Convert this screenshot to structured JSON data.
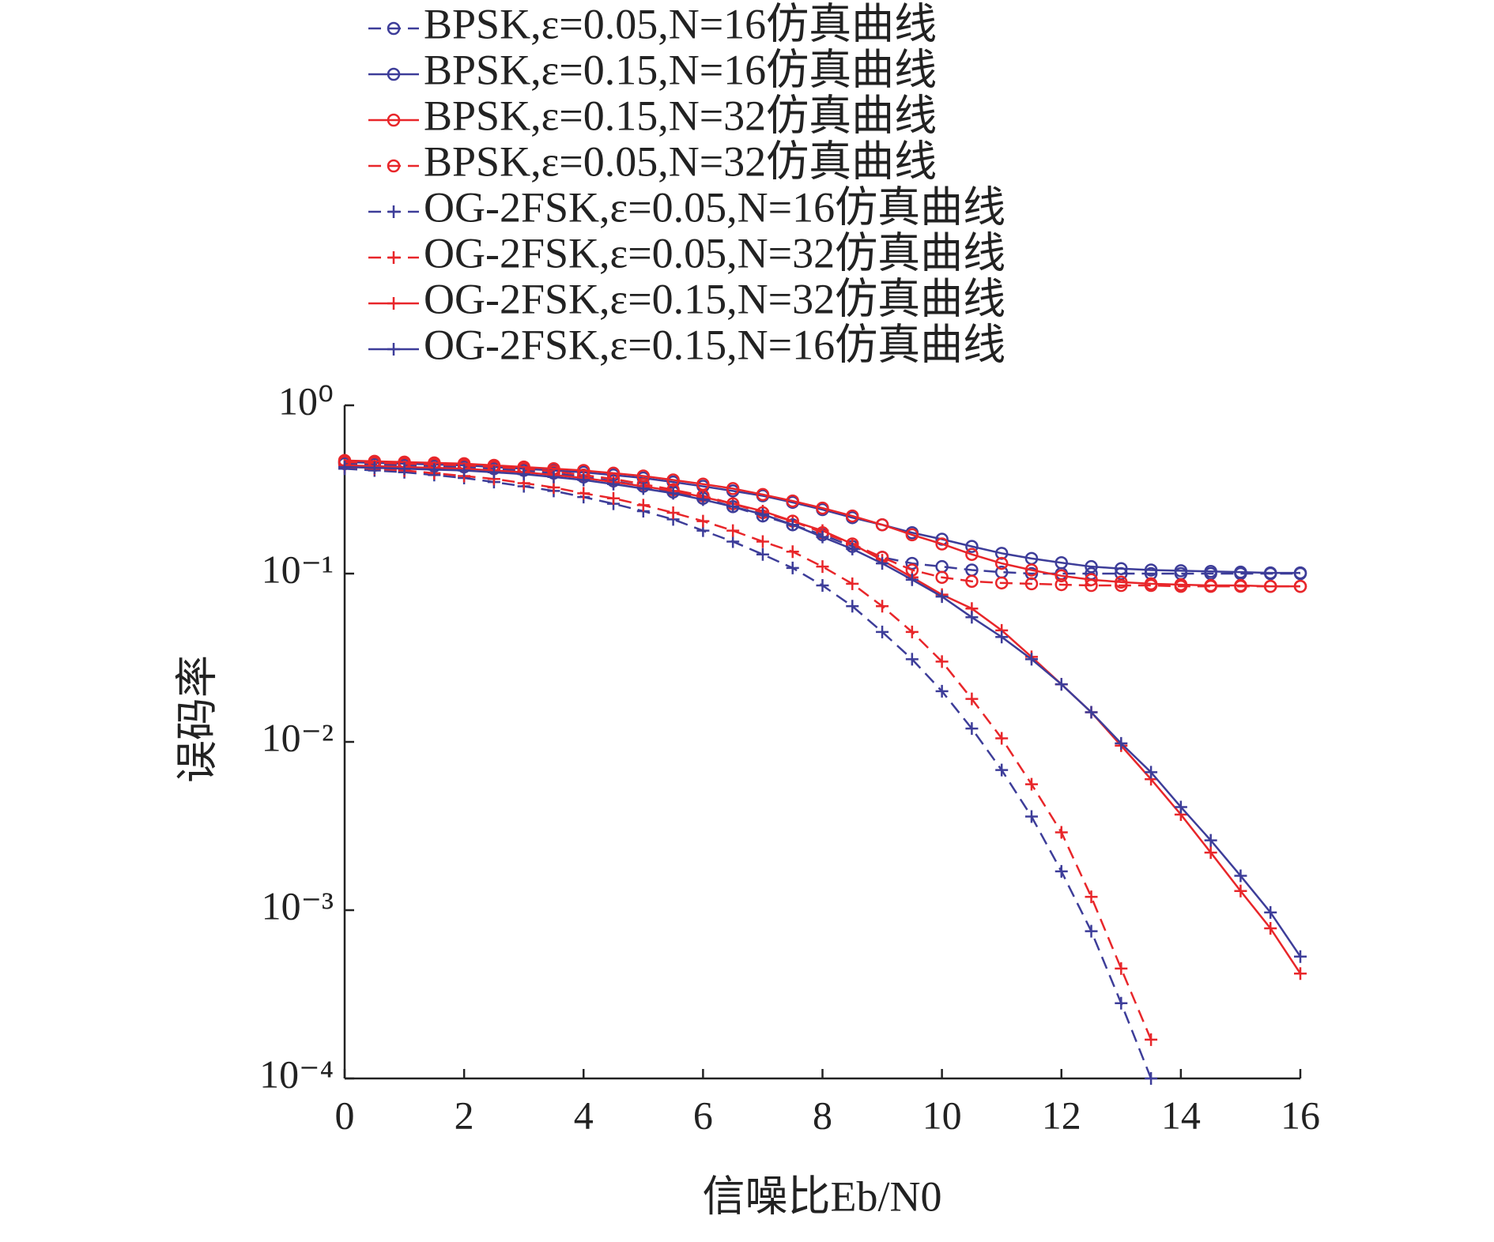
{
  "chart_data": {
    "type": "line",
    "xlabel": "信噪比Eb/N0",
    "ylabel": "误码率",
    "x": [
      0,
      0.5,
      1,
      1.5,
      2,
      2.5,
      3,
      3.5,
      4,
      4.5,
      5,
      5.5,
      6,
      6.5,
      7,
      7.5,
      8,
      8.5,
      9,
      9.5,
      10,
      10.5,
      11,
      11.5,
      12,
      12.5,
      13,
      13.5,
      14,
      14.5,
      15,
      15.5,
      16
    ],
    "xlim": [
      0,
      16
    ],
    "xticks": [
      0,
      2,
      4,
      6,
      8,
      10,
      12,
      14,
      16
    ],
    "ylim": [
      0.0001,
      1
    ],
    "log_y": true,
    "yticks": [
      {
        "value": 1,
        "label": "10⁰"
      },
      {
        "value": 0.1,
        "label": "10⁻¹"
      },
      {
        "value": 0.01,
        "label": "10⁻²"
      },
      {
        "value": 0.001,
        "label": "10⁻³"
      },
      {
        "value": 0.0001,
        "label": "10⁻⁴"
      }
    ],
    "series": [
      {
        "name": "BPSK,ε=0.05,N=16仿真曲线",
        "color": "#3d3d99",
        "dashed": true,
        "marker": "circle",
        "values": [
          0.45,
          0.445,
          0.44,
          0.435,
          0.43,
          0.42,
          0.41,
          0.395,
          0.375,
          0.355,
          0.33,
          0.305,
          0.28,
          0.25,
          0.22,
          0.195,
          0.17,
          0.145,
          0.125,
          0.115,
          0.11,
          0.105,
          0.102,
          0.1,
          0.1,
          0.1,
          0.1,
          0.1,
          0.1,
          0.1,
          0.1,
          0.1,
          0.1
        ]
      },
      {
        "name": "BPSK,ε=0.15,N=16仿真曲线",
        "color": "#3d3d99",
        "dashed": false,
        "marker": "circle",
        "values": [
          0.46,
          0.455,
          0.45,
          0.445,
          0.44,
          0.43,
          0.42,
          0.41,
          0.4,
          0.385,
          0.37,
          0.35,
          0.33,
          0.31,
          0.29,
          0.265,
          0.24,
          0.215,
          0.195,
          0.175,
          0.16,
          0.145,
          0.132,
          0.123,
          0.116,
          0.11,
          0.107,
          0.105,
          0.104,
          0.103,
          0.102,
          0.101,
          0.101
        ]
      },
      {
        "name": "BPSK,ε=0.15,N=32仿真曲线",
        "color": "#e8262a",
        "dashed": false,
        "marker": "circle",
        "values": [
          0.47,
          0.465,
          0.46,
          0.455,
          0.45,
          0.44,
          0.43,
          0.42,
          0.41,
          0.395,
          0.38,
          0.36,
          0.34,
          0.32,
          0.295,
          0.27,
          0.245,
          0.22,
          0.195,
          0.17,
          0.15,
          0.13,
          0.115,
          0.105,
          0.097,
          0.092,
          0.089,
          0.087,
          0.086,
          0.085,
          0.085,
          0.084,
          0.084
        ]
      },
      {
        "name": "BPSK,ε=0.05,N=32仿真曲线",
        "color": "#e8262a",
        "dashed": true,
        "marker": "circle",
        "values": [
          0.46,
          0.455,
          0.45,
          0.445,
          0.44,
          0.43,
          0.42,
          0.405,
          0.385,
          0.365,
          0.34,
          0.315,
          0.29,
          0.26,
          0.23,
          0.205,
          0.175,
          0.15,
          0.125,
          0.105,
          0.095,
          0.09,
          0.088,
          0.087,
          0.086,
          0.085,
          0.085,
          0.085,
          0.084,
          0.084,
          0.084,
          0.084,
          0.084
        ]
      },
      {
        "name": "OG-2FSK,ε=0.05,N=16仿真曲线",
        "color": "#3d3d99",
        "dashed": true,
        "marker": "plus",
        "values": [
          0.42,
          0.41,
          0.4,
          0.385,
          0.37,
          0.35,
          0.33,
          0.31,
          0.285,
          0.26,
          0.235,
          0.21,
          0.18,
          0.155,
          0.13,
          0.108,
          0.085,
          0.064,
          0.045,
          0.031,
          0.02,
          0.012,
          0.0068,
          0.0036,
          0.0017,
          0.00075,
          0.00028,
          0.0001,
          null,
          null,
          null,
          null,
          null
        ]
      },
      {
        "name": "OG-2FSK,ε=0.05,N=32仿真曲线",
        "color": "#e8262a",
        "dashed": true,
        "marker": "plus",
        "values": [
          0.43,
          0.42,
          0.41,
          0.395,
          0.38,
          0.365,
          0.345,
          0.325,
          0.3,
          0.28,
          0.255,
          0.23,
          0.205,
          0.18,
          0.155,
          0.135,
          0.11,
          0.087,
          0.064,
          0.045,
          0.03,
          0.018,
          0.0105,
          0.0056,
          0.0029,
          0.0012,
          0.00045,
          0.00017,
          null,
          null,
          null,
          null,
          null
        ]
      },
      {
        "name": "OG-2FSK,ε=0.15,N=32仿真曲线",
        "color": "#e8262a",
        "dashed": false,
        "marker": "plus",
        "values": [
          0.44,
          0.435,
          0.43,
          0.425,
          0.42,
          0.41,
          0.4,
          0.385,
          0.37,
          0.35,
          0.33,
          0.31,
          0.285,
          0.26,
          0.235,
          0.205,
          0.18,
          0.15,
          0.12,
          0.095,
          0.075,
          0.062,
          0.046,
          0.032,
          0.022,
          0.015,
          0.0095,
          0.006,
          0.0037,
          0.0022,
          0.0013,
          0.00078,
          0.00042
        ]
      },
      {
        "name": "OG-2FSK,ε=0.15,N=16仿真曲线",
        "color": "#3d3d99",
        "dashed": false,
        "marker": "plus",
        "values": [
          0.43,
          0.425,
          0.42,
          0.415,
          0.41,
          0.4,
          0.39,
          0.375,
          0.36,
          0.34,
          0.32,
          0.3,
          0.275,
          0.25,
          0.225,
          0.195,
          0.165,
          0.14,
          0.115,
          0.092,
          0.073,
          0.055,
          0.042,
          0.031,
          0.022,
          0.015,
          0.0098,
          0.0066,
          0.0041,
          0.0026,
          0.0016,
          0.00097,
          0.00053
        ]
      }
    ]
  }
}
